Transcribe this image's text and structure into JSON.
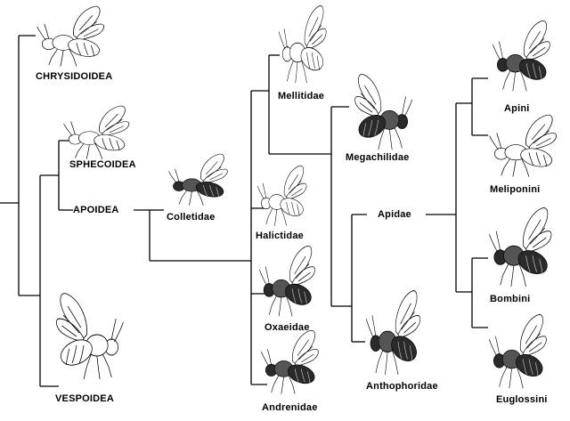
{
  "taxa": {
    "chrysidoidea": "CHRYSIDOIDEA",
    "sphecoidea": "SPHECOIDEA",
    "apoidea": "APOIDEA",
    "vespoidea": "VESPOIDEA",
    "colletidae": "Colletidae",
    "halictidae": "Halictidae",
    "oxaeidae": "Oxaeidae",
    "andrenidae": "Andrenidae",
    "mellitidae": "Mellitidae",
    "megachilidae": "Megachilidae",
    "apidae": "Apidae",
    "anthophoridae": "Anthophoridae",
    "apini": "Apini",
    "meliponini": "Meliponini",
    "bombini": "Bombini",
    "euglossini": "Euglossini"
  },
  "illustrations": [
    {
      "name": "chrysidoidea-wasp-illustration",
      "tone": "light"
    },
    {
      "name": "sphecoidea-wasp-illustration",
      "tone": "light"
    },
    {
      "name": "vespoidea-wasp-illustration",
      "tone": "light"
    },
    {
      "name": "colletidae-bee-illustration",
      "tone": "dark"
    },
    {
      "name": "halictidae-bee-illustration",
      "tone": "light"
    },
    {
      "name": "oxaeidae-bee-illustration",
      "tone": "dark"
    },
    {
      "name": "andrenidae-bee-illustration",
      "tone": "dark"
    },
    {
      "name": "mellitidae-bee-illustration",
      "tone": "light"
    },
    {
      "name": "megachilidae-bee-illustration",
      "tone": "dark"
    },
    {
      "name": "anthophoridae-bee-illustration",
      "tone": "dark"
    },
    {
      "name": "apini-bee-illustration",
      "tone": "dark"
    },
    {
      "name": "meliponini-bee-illustration",
      "tone": "light"
    },
    {
      "name": "bombini-bee-illustration",
      "tone": "dark"
    },
    {
      "name": "euglossini-bee-illustration",
      "tone": "dark"
    }
  ]
}
